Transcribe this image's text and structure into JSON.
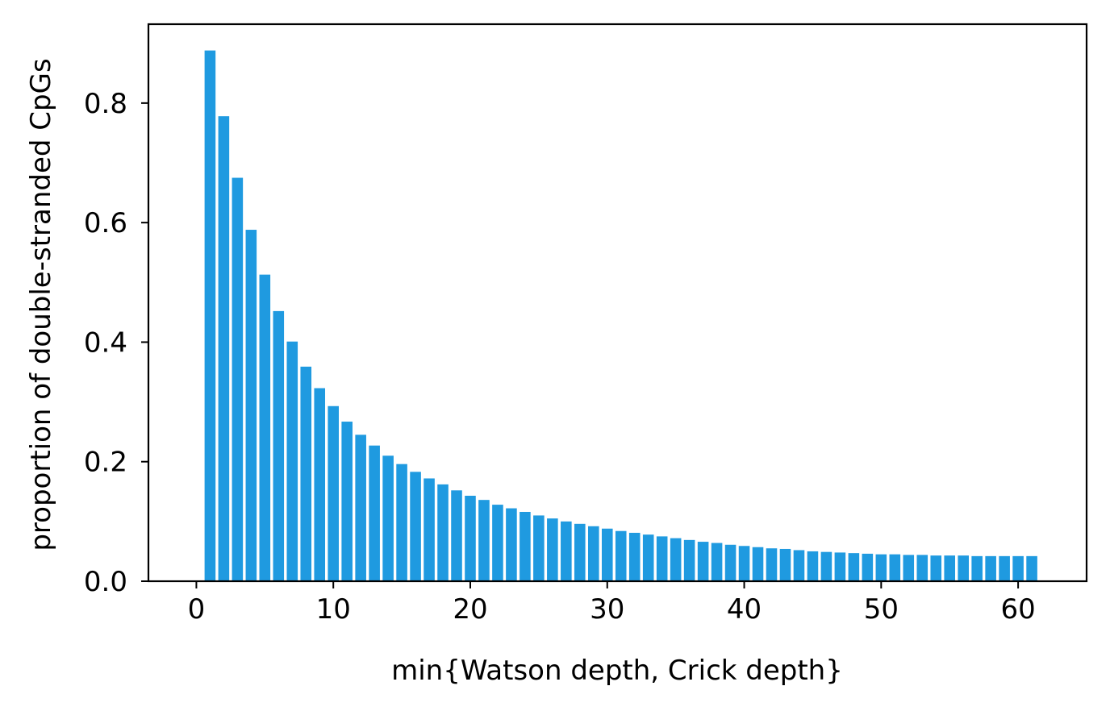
{
  "colors": {
    "bar": "#1f9ae0",
    "axis": "#000000",
    "background": "#ffffff"
  },
  "chart_data": {
    "type": "bar",
    "title": "",
    "xlabel": "min{Watson depth, Crick depth}",
    "ylabel": "proportion of double-stranded CpGs",
    "xlim": [
      -3.5,
      65
    ],
    "ylim": [
      0,
      0.932
    ],
    "grid": false,
    "legend": "none",
    "xticks": [
      0,
      10,
      20,
      30,
      40,
      50,
      60
    ],
    "xtick_labels": [
      "0",
      "10",
      "20",
      "30",
      "40",
      "50",
      "60"
    ],
    "yticks": [
      0.0,
      0.2,
      0.4,
      0.6,
      0.8
    ],
    "ytick_labels": [
      "0.0",
      "0.2",
      "0.4",
      "0.6",
      "0.8"
    ],
    "x": [
      1,
      2,
      3,
      4,
      5,
      6,
      7,
      8,
      9,
      10,
      11,
      12,
      13,
      14,
      15,
      16,
      17,
      18,
      19,
      20,
      21,
      22,
      23,
      24,
      25,
      26,
      27,
      28,
      29,
      30,
      31,
      32,
      33,
      34,
      35,
      36,
      37,
      38,
      39,
      40,
      41,
      42,
      43,
      44,
      45,
      46,
      47,
      48,
      49,
      50,
      51,
      52,
      53,
      54,
      55,
      56,
      57,
      58,
      59,
      60,
      61
    ],
    "values": [
      0.888,
      0.778,
      0.675,
      0.588,
      0.513,
      0.452,
      0.401,
      0.359,
      0.323,
      0.293,
      0.267,
      0.245,
      0.227,
      0.21,
      0.196,
      0.183,
      0.172,
      0.162,
      0.152,
      0.143,
      0.136,
      0.128,
      0.122,
      0.116,
      0.11,
      0.105,
      0.1,
      0.096,
      0.092,
      0.088,
      0.084,
      0.081,
      0.078,
      0.075,
      0.072,
      0.069,
      0.066,
      0.064,
      0.061,
      0.059,
      0.057,
      0.055,
      0.054,
      0.052,
      0.05,
      0.049,
      0.048,
      0.047,
      0.046,
      0.045,
      0.045,
      0.044,
      0.044,
      0.043,
      0.043,
      0.043,
      0.042,
      0.042,
      0.042,
      0.042,
      0.042
    ]
  }
}
